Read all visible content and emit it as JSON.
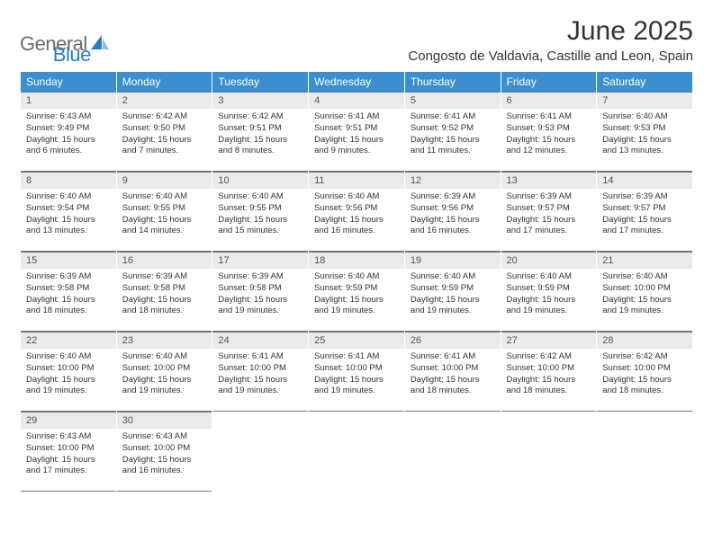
{
  "logo": {
    "general": "General",
    "blue": "Blue"
  },
  "title": "June 2025",
  "location": "Congosto de Valdavia, Castille and Leon, Spain",
  "dayNames": [
    "Sunday",
    "Monday",
    "Tuesday",
    "Wednesday",
    "Thursday",
    "Friday",
    "Saturday"
  ],
  "colors": {
    "header_bg": "#3b8fd1",
    "header_text": "#ffffff",
    "daynum_bg": "#eaeaea",
    "daynum_border": "#737373",
    "cell_border": "#5a7aa0",
    "logo_gray": "#6b6b6b",
    "logo_blue": "#2a7bd0",
    "text": "#333333"
  },
  "fonts": {
    "title_size": 30,
    "location_size": 15,
    "dayhead_size": 12,
    "daynum_size": 11,
    "cell_size": 9.5
  },
  "weeks": [
    {
      "nums": [
        "1",
        "2",
        "3",
        "4",
        "5",
        "6",
        "7"
      ],
      "cells": [
        {
          "sunrise": "Sunrise: 6:43 AM",
          "sunset": "Sunset: 9:49 PM",
          "daylight": "Daylight: 15 hours and 6 minutes."
        },
        {
          "sunrise": "Sunrise: 6:42 AM",
          "sunset": "Sunset: 9:50 PM",
          "daylight": "Daylight: 15 hours and 7 minutes."
        },
        {
          "sunrise": "Sunrise: 6:42 AM",
          "sunset": "Sunset: 9:51 PM",
          "daylight": "Daylight: 15 hours and 8 minutes."
        },
        {
          "sunrise": "Sunrise: 6:41 AM",
          "sunset": "Sunset: 9:51 PM",
          "daylight": "Daylight: 15 hours and 9 minutes."
        },
        {
          "sunrise": "Sunrise: 6:41 AM",
          "sunset": "Sunset: 9:52 PM",
          "daylight": "Daylight: 15 hours and 11 minutes."
        },
        {
          "sunrise": "Sunrise: 6:41 AM",
          "sunset": "Sunset: 9:53 PM",
          "daylight": "Daylight: 15 hours and 12 minutes."
        },
        {
          "sunrise": "Sunrise: 6:40 AM",
          "sunset": "Sunset: 9:53 PM",
          "daylight": "Daylight: 15 hours and 13 minutes."
        }
      ]
    },
    {
      "nums": [
        "8",
        "9",
        "10",
        "11",
        "12",
        "13",
        "14"
      ],
      "cells": [
        {
          "sunrise": "Sunrise: 6:40 AM",
          "sunset": "Sunset: 9:54 PM",
          "daylight": "Daylight: 15 hours and 13 minutes."
        },
        {
          "sunrise": "Sunrise: 6:40 AM",
          "sunset": "Sunset: 9:55 PM",
          "daylight": "Daylight: 15 hours and 14 minutes."
        },
        {
          "sunrise": "Sunrise: 6:40 AM",
          "sunset": "Sunset: 9:55 PM",
          "daylight": "Daylight: 15 hours and 15 minutes."
        },
        {
          "sunrise": "Sunrise: 6:40 AM",
          "sunset": "Sunset: 9:56 PM",
          "daylight": "Daylight: 15 hours and 16 minutes."
        },
        {
          "sunrise": "Sunrise: 6:39 AM",
          "sunset": "Sunset: 9:56 PM",
          "daylight": "Daylight: 15 hours and 16 minutes."
        },
        {
          "sunrise": "Sunrise: 6:39 AM",
          "sunset": "Sunset: 9:57 PM",
          "daylight": "Daylight: 15 hours and 17 minutes."
        },
        {
          "sunrise": "Sunrise: 6:39 AM",
          "sunset": "Sunset: 9:57 PM",
          "daylight": "Daylight: 15 hours and 17 minutes."
        }
      ]
    },
    {
      "nums": [
        "15",
        "16",
        "17",
        "18",
        "19",
        "20",
        "21"
      ],
      "cells": [
        {
          "sunrise": "Sunrise: 6:39 AM",
          "sunset": "Sunset: 9:58 PM",
          "daylight": "Daylight: 15 hours and 18 minutes."
        },
        {
          "sunrise": "Sunrise: 6:39 AM",
          "sunset": "Sunset: 9:58 PM",
          "daylight": "Daylight: 15 hours and 18 minutes."
        },
        {
          "sunrise": "Sunrise: 6:39 AM",
          "sunset": "Sunset: 9:58 PM",
          "daylight": "Daylight: 15 hours and 19 minutes."
        },
        {
          "sunrise": "Sunrise: 6:40 AM",
          "sunset": "Sunset: 9:59 PM",
          "daylight": "Daylight: 15 hours and 19 minutes."
        },
        {
          "sunrise": "Sunrise: 6:40 AM",
          "sunset": "Sunset: 9:59 PM",
          "daylight": "Daylight: 15 hours and 19 minutes."
        },
        {
          "sunrise": "Sunrise: 6:40 AM",
          "sunset": "Sunset: 9:59 PM",
          "daylight": "Daylight: 15 hours and 19 minutes."
        },
        {
          "sunrise": "Sunrise: 6:40 AM",
          "sunset": "Sunset: 10:00 PM",
          "daylight": "Daylight: 15 hours and 19 minutes."
        }
      ]
    },
    {
      "nums": [
        "22",
        "23",
        "24",
        "25",
        "26",
        "27",
        "28"
      ],
      "cells": [
        {
          "sunrise": "Sunrise: 6:40 AM",
          "sunset": "Sunset: 10:00 PM",
          "daylight": "Daylight: 15 hours and 19 minutes."
        },
        {
          "sunrise": "Sunrise: 6:40 AM",
          "sunset": "Sunset: 10:00 PM",
          "daylight": "Daylight: 15 hours and 19 minutes."
        },
        {
          "sunrise": "Sunrise: 6:41 AM",
          "sunset": "Sunset: 10:00 PM",
          "daylight": "Daylight: 15 hours and 19 minutes."
        },
        {
          "sunrise": "Sunrise: 6:41 AM",
          "sunset": "Sunset: 10:00 PM",
          "daylight": "Daylight: 15 hours and 19 minutes."
        },
        {
          "sunrise": "Sunrise: 6:41 AM",
          "sunset": "Sunset: 10:00 PM",
          "daylight": "Daylight: 15 hours and 18 minutes."
        },
        {
          "sunrise": "Sunrise: 6:42 AM",
          "sunset": "Sunset: 10:00 PM",
          "daylight": "Daylight: 15 hours and 18 minutes."
        },
        {
          "sunrise": "Sunrise: 6:42 AM",
          "sunset": "Sunset: 10:00 PM",
          "daylight": "Daylight: 15 hours and 18 minutes."
        }
      ]
    },
    {
      "nums": [
        "29",
        "30",
        "",
        "",
        "",
        "",
        ""
      ],
      "cells": [
        {
          "sunrise": "Sunrise: 6:43 AM",
          "sunset": "Sunset: 10:00 PM",
          "daylight": "Daylight: 15 hours and 17 minutes."
        },
        {
          "sunrise": "Sunrise: 6:43 AM",
          "sunset": "Sunset: 10:00 PM",
          "daylight": "Daylight: 15 hours and 16 minutes."
        },
        null,
        null,
        null,
        null,
        null
      ]
    }
  ]
}
